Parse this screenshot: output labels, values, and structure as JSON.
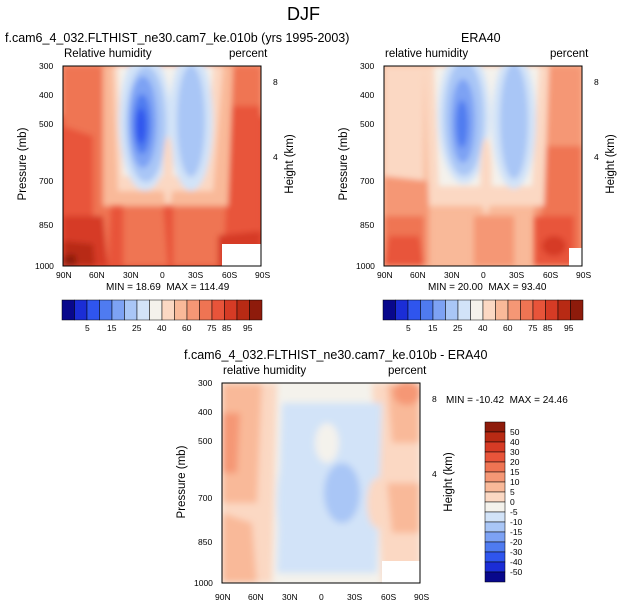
{
  "figure": {
    "title": "DJF"
  },
  "chart_data": [
    {
      "type": "heatmap",
      "panel": "model",
      "title": "f.cam6_4_032.FLTHIST_ne30.cam7_ke.010b (yrs 1995-2003)",
      "variable_label": "Relative humidity",
      "units": "percent",
      "xlabel": "",
      "ylabel": "Pressure (mb)",
      "right_label": "Height (km)",
      "x_ticks": [
        "90N",
        "60N",
        "30N",
        "0",
        "30S",
        "60S",
        "90S"
      ],
      "x_values": [
        90,
        60,
        30,
        0,
        -30,
        -60,
        -90
      ],
      "y_ticks": [
        "300",
        "400",
        "500",
        "700",
        "850",
        "1000"
      ],
      "y_values": [
        300,
        400,
        500,
        700,
        850,
        1000
      ],
      "right_ticks": [
        "8",
        "4"
      ],
      "right_values": [
        8,
        4
      ],
      "xlim": [
        90,
        -90
      ],
      "ylim": [
        300,
        1000
      ],
      "min_label": "MIN =",
      "min": "18.69",
      "max_label": "MAX =",
      "max": "114.49",
      "colorbar_levels": [
        "5",
        "15",
        "25",
        "40",
        "60",
        "75",
        "85",
        "95"
      ]
    },
    {
      "type": "heatmap",
      "panel": "obs",
      "title": "ERA40",
      "variable_label": "relative humidity",
      "units": "percent",
      "xlabel": "",
      "ylabel": "Pressure (mb)",
      "right_label": "Height (km)",
      "x_ticks": [
        "90N",
        "60N",
        "30N",
        "0",
        "30S",
        "60S",
        "90S"
      ],
      "x_values": [
        90,
        60,
        30,
        0,
        -30,
        -60,
        -90
      ],
      "y_ticks": [
        "300",
        "400",
        "500",
        "700",
        "850",
        "1000"
      ],
      "y_values": [
        300,
        400,
        500,
        700,
        850,
        1000
      ],
      "right_ticks": [
        "8",
        "4"
      ],
      "right_values": [
        8,
        4
      ],
      "xlim": [
        90,
        -90
      ],
      "ylim": [
        300,
        1000
      ],
      "min_label": "MIN =",
      "min": "20.00",
      "max_label": "MAX =",
      "max": "93.40",
      "colorbar_levels": [
        "5",
        "15",
        "25",
        "40",
        "60",
        "75",
        "85",
        "95"
      ]
    },
    {
      "type": "heatmap",
      "panel": "difference",
      "title": "f.cam6_4_032.FLTHIST_ne30.cam7_ke.010b - ERA40",
      "variable_label": "relative humidity",
      "units": "percent",
      "xlabel": "",
      "ylabel": "Pressure (mb)",
      "right_label": "Height (km)",
      "x_ticks": [
        "90N",
        "60N",
        "30N",
        "0",
        "30S",
        "60S",
        "90S"
      ],
      "x_values": [
        90,
        60,
        30,
        0,
        -30,
        -60,
        -90
      ],
      "y_ticks": [
        "300",
        "400",
        "500",
        "700",
        "850",
        "1000"
      ],
      "y_values": [
        300,
        400,
        500,
        700,
        850,
        1000
      ],
      "right_ticks": [
        "8",
        "4"
      ],
      "right_values": [
        8,
        4
      ],
      "xlim": [
        90,
        -90
      ],
      "ylim": [
        300,
        1000
      ],
      "min_label": "MIN =",
      "min": "-10.42",
      "max_label": "MAX =",
      "max": "24.46",
      "colorbar_levels": [
        "50",
        "40",
        "30",
        "20",
        "15",
        "10",
        "5",
        "0",
        "-5",
        "-10",
        "-15",
        "-20",
        "-30",
        "-40",
        "-50"
      ]
    }
  ],
  "colors": {
    "model_obs_palette": [
      "#08088c",
      "#1b2dd6",
      "#2f55ee",
      "#4f7bf0",
      "#7da2f4",
      "#a9c6f6",
      "#d2e3f8",
      "#f4f2ec",
      "#fbd8c3",
      "#f9b999",
      "#f59775",
      "#ef7453",
      "#e8543a",
      "#d63b25",
      "#b82a14",
      "#8e1b0b"
    ],
    "diff_palette": [
      "#8e1b0b",
      "#b82a14",
      "#d63b25",
      "#e8543a",
      "#ef7453",
      "#f59775",
      "#f9b999",
      "#fbd8c3",
      "#f4f2ec",
      "#d2e3f8",
      "#a9c6f6",
      "#7da2f4",
      "#4f7bf0",
      "#2f55ee",
      "#1b2dd6",
      "#08088c"
    ]
  }
}
